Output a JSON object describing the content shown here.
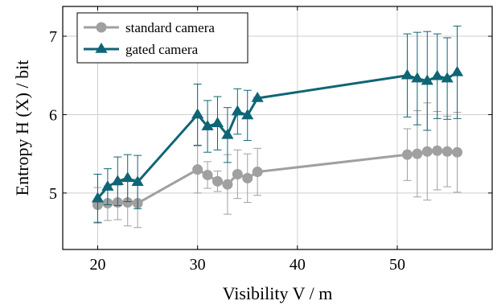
{
  "chart_data": {
    "type": "line",
    "xlabel": "Visibility V / m",
    "ylabel": "Entropy H (X) / bit",
    "xlim": [
      16.5,
      59.5
    ],
    "ylim": [
      4.28,
      7.38
    ],
    "x_ticks": [
      20,
      30,
      40,
      50
    ],
    "y_ticks": [
      5,
      6,
      7
    ],
    "grid": true,
    "legend_position": "top-left",
    "series": [
      {
        "name": "standard camera",
        "color": "#a0a0a0",
        "marker": "circle",
        "x": [
          20,
          21,
          22,
          23,
          24,
          30,
          31,
          32,
          33,
          34,
          35,
          36,
          51,
          52,
          53,
          54,
          55,
          56
        ],
        "y": [
          4.85,
          4.87,
          4.88,
          4.88,
          4.87,
          5.3,
          5.23,
          5.15,
          5.11,
          5.24,
          5.19,
          5.27,
          5.49,
          5.5,
          5.53,
          5.54,
          5.53,
          5.52
        ],
        "error": [
          0.22,
          0.22,
          0.22,
          0.3,
          0.31,
          0.3,
          0.17,
          0.13,
          0.38,
          0.31,
          0.31,
          0.3,
          0.33,
          0.55,
          0.62,
          0.5,
          0.45,
          0.51
        ]
      },
      {
        "name": "gated camera",
        "color": "#0f6576",
        "marker": "triangle",
        "x": [
          20,
          21,
          22,
          23,
          24,
          30,
          31,
          32,
          33,
          34,
          35,
          36,
          51,
          52,
          53,
          54,
          55,
          56
        ],
        "y": [
          4.93,
          5.08,
          5.15,
          5.19,
          5.14,
          6.0,
          5.85,
          5.89,
          5.74,
          6.04,
          5.99,
          6.21,
          6.5,
          6.46,
          6.43,
          6.49,
          6.46,
          6.54
        ],
        "error": [
          0.31,
          0.23,
          0.31,
          0.3,
          0.34,
          0.39,
          0.33,
          0.34,
          0.35,
          0.29,
          0.32,
          0.01,
          0.53,
          0.59,
          0.63,
          0.54,
          0.52,
          0.59
        ]
      }
    ]
  }
}
